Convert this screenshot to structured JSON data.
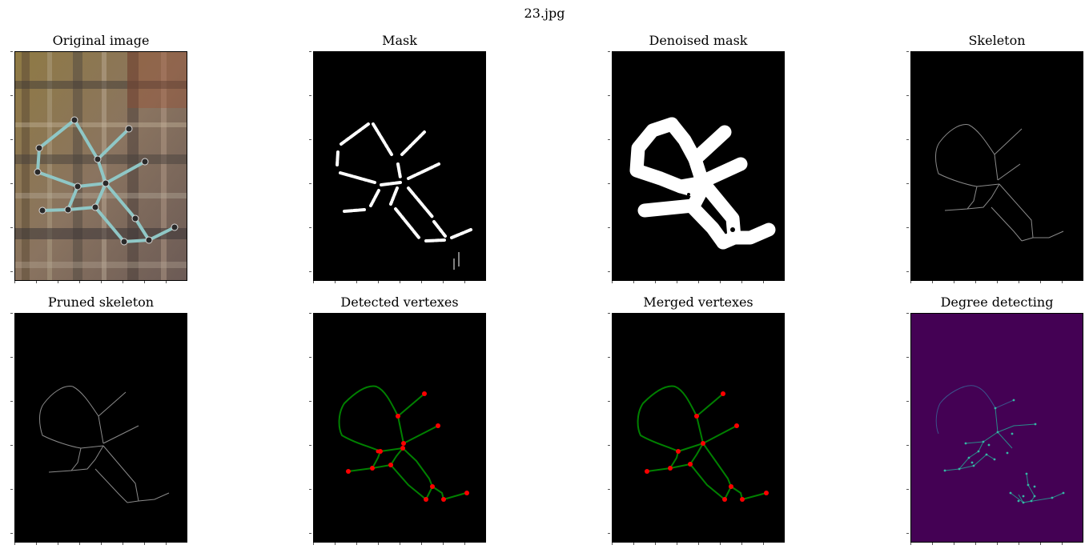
{
  "figure": {
    "title": "23.jpg"
  },
  "panels": [
    {
      "title": "Original image"
    },
    {
      "title": "Mask"
    },
    {
      "title": "Denoised mask"
    },
    {
      "title": "Skeleton"
    },
    {
      "title": "Pruned skeleton"
    },
    {
      "title": "Detected vertexes"
    },
    {
      "title": "Merged vertexes"
    },
    {
      "title": "Degree detecting"
    }
  ],
  "colors": {
    "edge": "#008000",
    "vertex": "#ff0000",
    "degree_background": "#440154",
    "degree_nodes": "#35b7a5"
  }
}
